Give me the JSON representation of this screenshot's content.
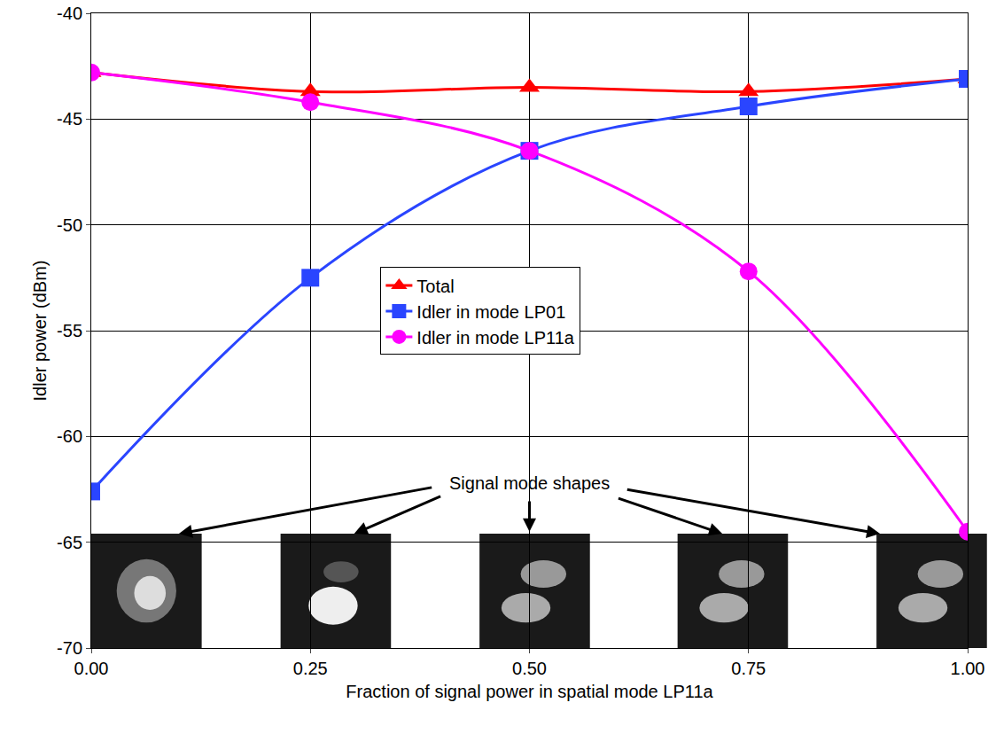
{
  "chart_data": {
    "type": "line",
    "x_label": "Fraction of signal power in spatial mode LP11a",
    "y_label": "Idler power (dBm)",
    "x": [
      0,
      0.25,
      0.5,
      0.75,
      1.0
    ],
    "series": [
      {
        "name": "Total",
        "color": "#ff0000",
        "marker": "triangle",
        "values": [
          -42.8,
          -43.7,
          -43.5,
          -43.7,
          -43.1
        ]
      },
      {
        "name": "Idler in mode LP01",
        "color": "#2a45ff",
        "marker": "square",
        "values": [
          -62.6,
          -52.5,
          -46.5,
          -44.4,
          -43.1
        ]
      },
      {
        "name": "Idler in mode LP11a",
        "color": "#ff00ff",
        "marker": "circle",
        "values": [
          -42.8,
          -44.2,
          -46.5,
          -52.2,
          -64.5
        ]
      }
    ],
    "line_style": "smooth",
    "xlim": [
      0,
      1.0
    ],
    "xticks": [
      {
        "value": 0,
        "label": "0.00"
      },
      {
        "value": 0.25,
        "label": "0.25"
      },
      {
        "value": 0.5,
        "label": "0.50"
      },
      {
        "value": 0.75,
        "label": "0.75"
      },
      {
        "value": 1.0,
        "label": "1.00"
      }
    ],
    "ylim": [
      -70,
      -40
    ],
    "yticks": [
      -70,
      -65,
      -60,
      -55,
      -50,
      -45,
      -40
    ],
    "grid": true,
    "legend": "center",
    "annotations": [
      "Signal mode shapes"
    ]
  }
}
